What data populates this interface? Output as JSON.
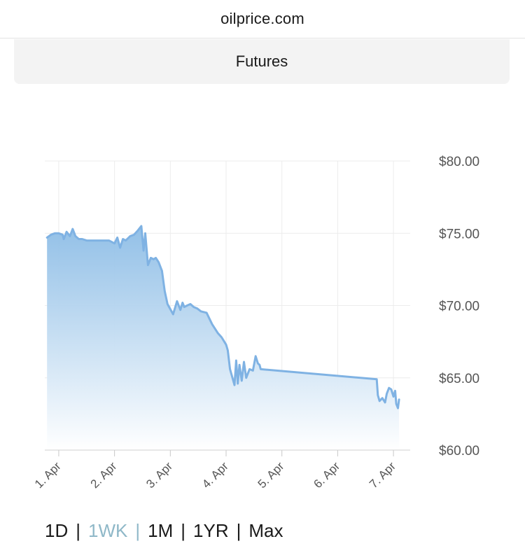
{
  "browser": {
    "url": "oilprice.com"
  },
  "header": {
    "title": "Futures"
  },
  "ranges": [
    {
      "label": "1D",
      "active": false
    },
    {
      "label": "1WK",
      "active": true
    },
    {
      "label": "1M",
      "active": false
    },
    {
      "label": "1YR",
      "active": false
    },
    {
      "label": "Max",
      "active": false
    }
  ],
  "range_separator": "|",
  "colors": {
    "line": "#7fb2e3",
    "fill_top": "#8dbde6",
    "grid": "#ececec",
    "active_range": "#8fb8c8"
  },
  "chart_data": {
    "type": "area",
    "title": "",
    "xlabel": "",
    "ylabel": "",
    "ylim": [
      60,
      80
    ],
    "xlim": [
      0.75,
      7.3
    ],
    "grid": true,
    "y_axis_position": "right",
    "y_ticks": [
      {
        "value": 80,
        "label": "$80.00"
      },
      {
        "value": 75,
        "label": "$75.00"
      },
      {
        "value": 70,
        "label": "$70.00"
      },
      {
        "value": 65,
        "label": "$65.00"
      },
      {
        "value": 60,
        "label": "$60.00"
      }
    ],
    "x_ticks": [
      {
        "value": 1,
        "label": "1. Apr"
      },
      {
        "value": 2,
        "label": "2. Apr"
      },
      {
        "value": 3,
        "label": "3. Apr"
      },
      {
        "value": 4,
        "label": "4. Apr"
      },
      {
        "value": 5,
        "label": "5. Apr"
      },
      {
        "value": 6,
        "label": "6. Apr"
      },
      {
        "value": 7,
        "label": "7. Apr"
      }
    ],
    "series": [
      {
        "x": [
          0.79,
          0.86,
          0.93,
          1.0,
          1.07,
          1.09,
          1.14,
          1.2,
          1.25,
          1.3,
          1.36,
          1.42,
          1.5,
          1.6,
          1.7,
          1.8,
          1.9,
          2.0,
          2.05,
          2.1,
          2.15,
          2.2,
          2.28,
          2.35,
          2.42,
          2.48,
          2.52,
          2.55,
          2.6,
          2.65,
          2.7,
          2.74,
          2.79,
          2.85,
          2.9,
          2.95,
          3.05,
          3.12,
          3.18,
          3.22,
          3.25,
          3.3,
          3.36,
          3.42,
          3.48,
          3.55,
          3.65,
          3.75,
          3.85,
          3.92,
          4.0,
          4.03,
          4.07,
          4.15,
          4.18,
          4.21,
          4.24,
          4.28,
          4.32,
          4.36,
          4.42,
          4.48,
          4.53,
          4.57,
          4.6,
          4.62,
          6.7,
          6.72,
          6.75,
          6.8,
          6.85,
          6.88,
          6.92,
          6.96,
          7.0,
          7.03,
          7.05,
          7.08,
          7.1
        ],
        "y": [
          74.7,
          74.9,
          75.0,
          75.0,
          74.9,
          74.6,
          75.1,
          74.8,
          75.3,
          74.8,
          74.6,
          74.6,
          74.5,
          74.5,
          74.5,
          74.5,
          74.5,
          74.3,
          74.7,
          74.0,
          74.6,
          74.5,
          74.8,
          74.9,
          75.2,
          75.5,
          73.8,
          75.0,
          72.8,
          73.3,
          73.2,
          73.3,
          73.0,
          72.4,
          71.0,
          70.1,
          69.4,
          70.3,
          69.7,
          70.2,
          69.9,
          70.0,
          70.1,
          69.9,
          69.8,
          69.6,
          69.5,
          68.7,
          68.1,
          67.8,
          67.3,
          66.9,
          65.6,
          64.5,
          66.2,
          64.6,
          65.9,
          64.8,
          66.1,
          65.0,
          65.6,
          65.5,
          66.5,
          66.0,
          65.9,
          65.6,
          64.9,
          63.8,
          63.4,
          63.6,
          63.3,
          63.9,
          64.3,
          64.2,
          63.7,
          64.1,
          63.2,
          62.9,
          63.5
        ]
      }
    ]
  }
}
